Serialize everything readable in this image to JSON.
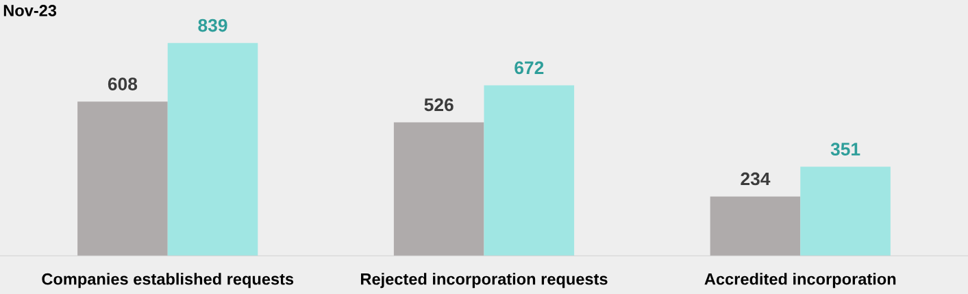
{
  "chart_data": {
    "type": "bar",
    "title": "Nov-23",
    "categories": [
      "Companies established requests",
      "Rejected incorporation requests",
      "Accredited incorporation"
    ],
    "series": [
      {
        "color": "#afabab",
        "values": [
          608,
          526,
          234
        ]
      },
      {
        "color": "#a0e6e3",
        "values": [
          839,
          672,
          351
        ]
      }
    ],
    "data_labels": true
  }
}
